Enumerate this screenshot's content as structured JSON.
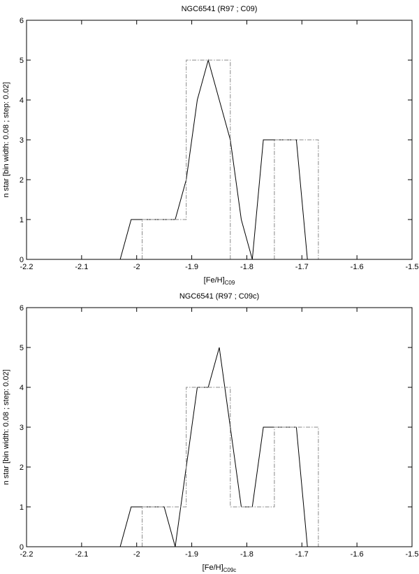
{
  "chart_data": [
    {
      "type": "line",
      "title": "NGC6541 (R97 ; C09)",
      "xlabel": {
        "base": "[Fe/H]",
        "sub": "C09"
      },
      "ylabel": "n star [bin width: 0.08 ; step: 0.02]",
      "xlim": [
        -2.2,
        -1.5
      ],
      "ylim": [
        0,
        6
      ],
      "xticks": [
        -2.2,
        -2.1,
        -2.0,
        -1.9,
        -1.8,
        -1.7,
        -1.6,
        -1.5
      ],
      "xtick_labels": [
        "-2.2",
        "-2.1",
        "-2",
        "-1.9",
        "-1.8",
        "-1.7",
        "-1.6",
        "-1.5"
      ],
      "yticks": [
        0,
        1,
        2,
        3,
        4,
        5,
        6
      ],
      "ytick_labels": [
        "0",
        "1",
        "2",
        "3",
        "4",
        "5",
        "6"
      ],
      "series": [
        {
          "style": "solid",
          "color": "#000000",
          "x": [
            -2.03,
            -2.01,
            -1.99,
            -1.97,
            -1.95,
            -1.93,
            -1.91,
            -1.89,
            -1.87,
            -1.85,
            -1.83,
            -1.81,
            -1.79,
            -1.77,
            -1.75,
            -1.73,
            -1.71,
            -1.69
          ],
          "y": [
            0,
            1,
            1,
            1,
            1,
            1,
            2,
            4,
            5,
            4,
            3,
            1,
            0,
            3,
            3,
            3,
            3,
            0
          ]
        },
        {
          "style": "dash-dot",
          "color": "#888888",
          "x": [
            -1.99,
            -1.99,
            -1.91,
            -1.91,
            -1.83,
            -1.83,
            -1.75,
            -1.75,
            -1.67,
            -1.67
          ],
          "y": [
            0,
            1,
            1,
            5,
            5,
            0,
            0,
            3,
            3,
            0
          ]
        }
      ]
    },
    {
      "type": "line",
      "title": "NGC6541 (R97 ; C09c)",
      "xlabel": {
        "base": "[Fe/H]",
        "sub": "C09c"
      },
      "ylabel": "n star [bin width: 0.08 ; step: 0.02]",
      "xlim": [
        -2.2,
        -1.5
      ],
      "ylim": [
        0,
        6
      ],
      "xticks": [
        -2.2,
        -2.1,
        -2.0,
        -1.9,
        -1.8,
        -1.7,
        -1.6,
        -1.5
      ],
      "xtick_labels": [
        "-2.2",
        "-2.1",
        "-2",
        "-1.9",
        "-1.8",
        "-1.7",
        "-1.6",
        "-1.5"
      ],
      "yticks": [
        0,
        1,
        2,
        3,
        4,
        5,
        6
      ],
      "ytick_labels": [
        "0",
        "1",
        "2",
        "3",
        "4",
        "5",
        "6"
      ],
      "series": [
        {
          "style": "solid",
          "color": "#000000",
          "x": [
            -2.03,
            -2.01,
            -1.99,
            -1.97,
            -1.95,
            -1.93,
            -1.91,
            -1.89,
            -1.87,
            -1.85,
            -1.83,
            -1.81,
            -1.79,
            -1.77,
            -1.75,
            -1.73,
            -1.71,
            -1.69
          ],
          "y": [
            0,
            1,
            1,
            1,
            1,
            0,
            2,
            4,
            4,
            5,
            3,
            1,
            1,
            3,
            3,
            3,
            3,
            0
          ]
        },
        {
          "style": "dash-dot",
          "color": "#888888",
          "x": [
            -1.99,
            -1.99,
            -1.91,
            -1.91,
            -1.83,
            -1.83,
            -1.75,
            -1.75,
            -1.67,
            -1.67
          ],
          "y": [
            0,
            1,
            1,
            4,
            4,
            1,
            1,
            3,
            3,
            0
          ]
        }
      ]
    }
  ]
}
